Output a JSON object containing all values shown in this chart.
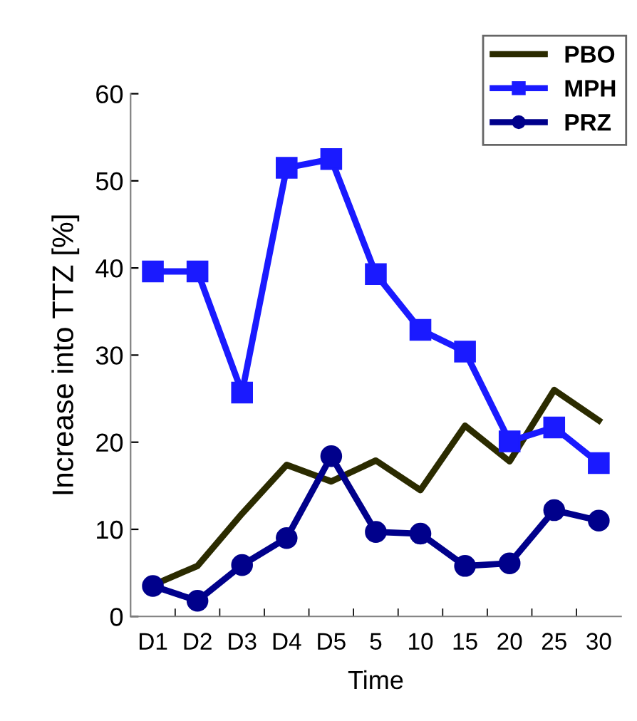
{
  "chart_data": {
    "type": "line",
    "xlabel": "Time",
    "ylabel": "Increase into TTZ [%]",
    "categories": [
      "D1",
      "D2",
      "D3",
      "D4",
      "D5",
      "5",
      "10",
      "15",
      "20",
      "25",
      "30"
    ],
    "series": [
      {
        "name": "PBO",
        "color": "#2b2b00",
        "marker": "none",
        "values": [
          3.6,
          5.8,
          11.8,
          17.4,
          15.5,
          17.9,
          14.5,
          21.9,
          17.8,
          26.0,
          22.5
        ]
      },
      {
        "name": "MPH",
        "color": "#1a1aff",
        "marker": "square",
        "values": [
          39.6,
          39.6,
          25.7,
          51.5,
          52.5,
          39.3,
          32.9,
          30.4,
          20.1,
          21.7,
          17.6
        ]
      },
      {
        "name": "PRZ",
        "color": "#00008b",
        "marker": "circle",
        "values": [
          3.5,
          1.8,
          5.9,
          9.0,
          18.4,
          9.7,
          9.5,
          5.8,
          6.1,
          12.2,
          11.0
        ]
      }
    ],
    "ylim": [
      0,
      60
    ],
    "yticks": [
      0,
      10,
      20,
      30,
      40,
      50,
      60
    ],
    "grid": false,
    "legend": "top right",
    "line_style": "solid"
  }
}
